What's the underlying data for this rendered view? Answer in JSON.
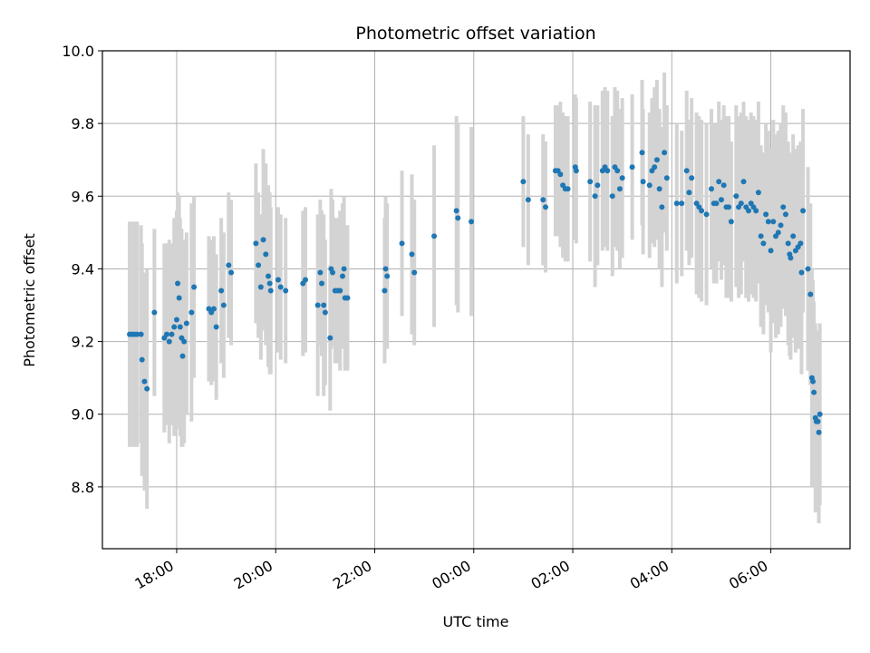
{
  "chart_data": {
    "type": "scatter",
    "title": "Photometric offset variation",
    "xlabel": "UTC time",
    "ylabel": "Photometric offset",
    "x_unit": "hours",
    "x_tick_values": [
      18,
      20,
      22,
      24,
      26,
      28,
      30
    ],
    "x_tick_labels": [
      "18:00",
      "20:00",
      "22:00",
      "00:00",
      "02:00",
      "04:00",
      "06:00"
    ],
    "y_ticks": [
      8.8,
      9.0,
      9.2,
      9.4,
      9.6,
      9.8,
      10.0
    ],
    "y_tick_labels": [
      "8.8",
      "9.0",
      "9.2",
      "9.4",
      "9.6",
      "9.8",
      "10.0"
    ],
    "xlim": [
      16.5,
      31.6
    ],
    "ylim": [
      8.63,
      10.0
    ],
    "grid": true,
    "marker_color": "#1f77b4",
    "errorbar_color": "#d3d3d3",
    "points": [
      [
        17.05,
        9.22,
        0.31
      ],
      [
        17.1,
        9.22,
        0.31
      ],
      [
        17.15,
        9.22,
        0.31
      ],
      [
        17.2,
        9.22,
        0.31
      ],
      [
        17.28,
        9.22,
        0.3
      ],
      [
        17.3,
        9.15,
        0.32
      ],
      [
        17.35,
        9.09,
        0.3
      ],
      [
        17.4,
        9.07,
        0.33
      ],
      [
        17.55,
        9.28,
        0.23
      ],
      [
        17.75,
        9.21,
        0.26
      ],
      [
        17.8,
        9.22,
        0.25
      ],
      [
        17.85,
        9.2,
        0.28
      ],
      [
        17.9,
        9.22,
        0.25
      ],
      [
        17.95,
        9.24,
        0.3
      ],
      [
        18.0,
        9.26,
        0.3
      ],
      [
        18.02,
        9.36,
        0.25
      ],
      [
        18.05,
        9.32,
        0.28
      ],
      [
        18.07,
        9.24,
        0.3
      ],
      [
        18.1,
        9.21,
        0.3
      ],
      [
        18.12,
        9.16,
        0.25
      ],
      [
        18.15,
        9.2,
        0.28
      ],
      [
        18.2,
        9.25,
        0.25
      ],
      [
        18.3,
        9.28,
        0.3
      ],
      [
        18.35,
        9.35,
        0.25
      ],
      [
        18.65,
        9.29,
        0.2
      ],
      [
        18.7,
        9.28,
        0.2
      ],
      [
        18.75,
        9.29,
        0.2
      ],
      [
        18.8,
        9.24,
        0.2
      ],
      [
        18.9,
        9.34,
        0.2
      ],
      [
        18.95,
        9.3,
        0.2
      ],
      [
        19.05,
        9.41,
        0.2
      ],
      [
        19.1,
        9.39,
        0.2
      ],
      [
        19.6,
        9.47,
        0.22
      ],
      [
        19.65,
        9.41,
        0.2
      ],
      [
        19.7,
        9.35,
        0.2
      ],
      [
        19.75,
        9.48,
        0.25
      ],
      [
        19.8,
        9.44,
        0.25
      ],
      [
        19.85,
        9.38,
        0.25
      ],
      [
        19.88,
        9.36,
        0.25
      ],
      [
        19.9,
        9.34,
        0.23
      ],
      [
        20.05,
        9.37,
        0.2
      ],
      [
        20.1,
        9.35,
        0.2
      ],
      [
        20.2,
        9.34,
        0.2
      ],
      [
        20.55,
        9.36,
        0.2
      ],
      [
        20.6,
        9.37,
        0.2
      ],
      [
        20.85,
        9.3,
        0.25
      ],
      [
        20.9,
        9.39,
        0.2
      ],
      [
        20.93,
        9.36,
        0.2
      ],
      [
        20.97,
        9.3,
        0.25
      ],
      [
        21.0,
        9.28,
        0.2
      ],
      [
        21.1,
        9.21,
        0.2
      ],
      [
        21.12,
        9.4,
        0.22
      ],
      [
        21.15,
        9.39,
        0.2
      ],
      [
        21.2,
        9.34,
        0.2
      ],
      [
        21.25,
        9.34,
        0.2
      ],
      [
        21.3,
        9.34,
        0.22
      ],
      [
        21.35,
        9.38,
        0.2
      ],
      [
        21.38,
        9.4,
        0.2
      ],
      [
        21.4,
        9.32,
        0.2
      ],
      [
        21.45,
        9.32,
        0.2
      ],
      [
        22.2,
        9.34,
        0.2
      ],
      [
        22.22,
        9.4,
        0.2
      ],
      [
        22.25,
        9.38,
        0.2
      ],
      [
        22.55,
        9.47,
        0.2
      ],
      [
        22.75,
        9.44,
        0.22
      ],
      [
        22.8,
        9.39,
        0.2
      ],
      [
        23.2,
        9.49,
        0.25
      ],
      [
        23.65,
        9.56,
        0.26
      ],
      [
        23.68,
        9.54,
        0.26
      ],
      [
        23.95,
        9.53,
        0.26
      ],
      [
        25.0,
        9.64,
        0.18
      ],
      [
        25.1,
        9.59,
        0.18
      ],
      [
        25.4,
        9.59,
        0.18
      ],
      [
        25.45,
        9.57,
        0.18
      ],
      [
        25.65,
        9.67,
        0.18
      ],
      [
        25.7,
        9.67,
        0.18
      ],
      [
        25.75,
        9.66,
        0.2
      ],
      [
        25.8,
        9.63,
        0.2
      ],
      [
        25.85,
        9.62,
        0.2
      ],
      [
        25.9,
        9.62,
        0.2
      ],
      [
        26.05,
        9.68,
        0.2
      ],
      [
        26.07,
        9.67,
        0.2
      ],
      [
        26.35,
        9.64,
        0.22
      ],
      [
        26.45,
        9.6,
        0.25
      ],
      [
        26.5,
        9.63,
        0.22
      ],
      [
        26.6,
        9.67,
        0.22
      ],
      [
        26.65,
        9.68,
        0.22
      ],
      [
        26.7,
        9.67,
        0.22
      ],
      [
        26.8,
        9.6,
        0.22
      ],
      [
        26.85,
        9.68,
        0.22
      ],
      [
        26.9,
        9.67,
        0.22
      ],
      [
        26.95,
        9.62,
        0.22
      ],
      [
        27.0,
        9.65,
        0.22
      ],
      [
        27.2,
        9.68,
        0.2
      ],
      [
        27.4,
        9.72,
        0.2
      ],
      [
        27.42,
        9.64,
        0.2
      ],
      [
        27.55,
        9.63,
        0.2
      ],
      [
        27.6,
        9.67,
        0.2
      ],
      [
        27.65,
        9.68,
        0.22
      ],
      [
        27.7,
        9.7,
        0.22
      ],
      [
        27.75,
        9.62,
        0.22
      ],
      [
        27.8,
        9.57,
        0.22
      ],
      [
        27.85,
        9.72,
        0.22
      ],
      [
        27.9,
        9.65,
        0.2
      ],
      [
        28.1,
        9.58,
        0.22
      ],
      [
        28.2,
        9.58,
        0.2
      ],
      [
        28.3,
        9.67,
        0.22
      ],
      [
        28.35,
        9.61,
        0.2
      ],
      [
        28.4,
        9.65,
        0.22
      ],
      [
        28.5,
        9.58,
        0.25
      ],
      [
        28.55,
        9.57,
        0.25
      ],
      [
        28.6,
        9.56,
        0.25
      ],
      [
        28.7,
        9.55,
        0.25
      ],
      [
        28.8,
        9.62,
        0.22
      ],
      [
        28.85,
        9.58,
        0.22
      ],
      [
        28.9,
        9.58,
        0.22
      ],
      [
        28.95,
        9.64,
        0.22
      ],
      [
        29.0,
        9.59,
        0.22
      ],
      [
        29.05,
        9.63,
        0.22
      ],
      [
        29.1,
        9.57,
        0.25
      ],
      [
        29.15,
        9.57,
        0.25
      ],
      [
        29.2,
        9.53,
        0.22
      ],
      [
        29.3,
        9.6,
        0.25
      ],
      [
        29.35,
        9.57,
        0.25
      ],
      [
        29.4,
        9.58,
        0.25
      ],
      [
        29.45,
        9.64,
        0.22
      ],
      [
        29.5,
        9.57,
        0.25
      ],
      [
        29.55,
        9.56,
        0.25
      ],
      [
        29.6,
        9.58,
        0.25
      ],
      [
        29.65,
        9.57,
        0.25
      ],
      [
        29.7,
        9.56,
        0.25
      ],
      [
        29.75,
        9.61,
        0.25
      ],
      [
        29.8,
        9.49,
        0.25
      ],
      [
        29.85,
        9.47,
        0.25
      ],
      [
        29.9,
        9.55,
        0.25
      ],
      [
        29.95,
        9.53,
        0.25
      ],
      [
        30.0,
        9.45,
        0.28
      ],
      [
        30.05,
        9.53,
        0.28
      ],
      [
        30.1,
        9.49,
        0.28
      ],
      [
        30.15,
        9.5,
        0.28
      ],
      [
        30.2,
        9.52,
        0.28
      ],
      [
        30.25,
        9.57,
        0.28
      ],
      [
        30.3,
        9.55,
        0.28
      ],
      [
        30.35,
        9.47,
        0.28
      ],
      [
        30.38,
        9.44,
        0.28
      ],
      [
        30.4,
        9.43,
        0.28
      ],
      [
        30.45,
        9.49,
        0.28
      ],
      [
        30.5,
        9.45,
        0.28
      ],
      [
        30.55,
        9.46,
        0.28
      ],
      [
        30.6,
        9.47,
        0.28
      ],
      [
        30.62,
        9.39,
        0.28
      ],
      [
        30.65,
        9.56,
        0.28
      ],
      [
        30.75,
        9.4,
        0.28
      ],
      [
        30.8,
        9.33,
        0.25
      ],
      [
        30.83,
        9.1,
        0.3
      ],
      [
        30.85,
        9.09,
        0.28
      ],
      [
        30.87,
        9.06,
        0.25
      ],
      [
        30.9,
        8.99,
        0.26
      ],
      [
        30.92,
        8.98,
        0.25
      ],
      [
        30.95,
        8.98,
        0.25
      ],
      [
        30.97,
        8.95,
        0.25
      ],
      [
        30.99,
        9.0,
        0.25
      ]
    ]
  }
}
